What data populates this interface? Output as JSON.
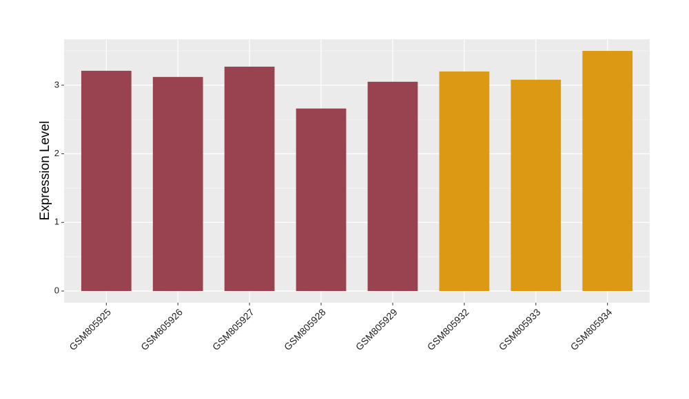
{
  "chart_data": {
    "type": "bar",
    "y_label": "Expression Level",
    "categories": [
      "GSM805925",
      "GSM805926",
      "GSM805927",
      "GSM805928",
      "GSM805929",
      "GSM805932",
      "GSM805933",
      "GSM805934"
    ],
    "values": [
      3.21,
      3.12,
      3.27,
      2.66,
      3.05,
      3.2,
      3.08,
      3.5
    ],
    "colors": [
      "#994350",
      "#994350",
      "#994350",
      "#994350",
      "#994350",
      "#dc9914",
      "#dc9914",
      "#dc9914"
    ],
    "ylim": [
      -0.17,
      3.67
    ],
    "yticks": [
      0,
      1,
      2,
      3
    ],
    "grid": true
  }
}
